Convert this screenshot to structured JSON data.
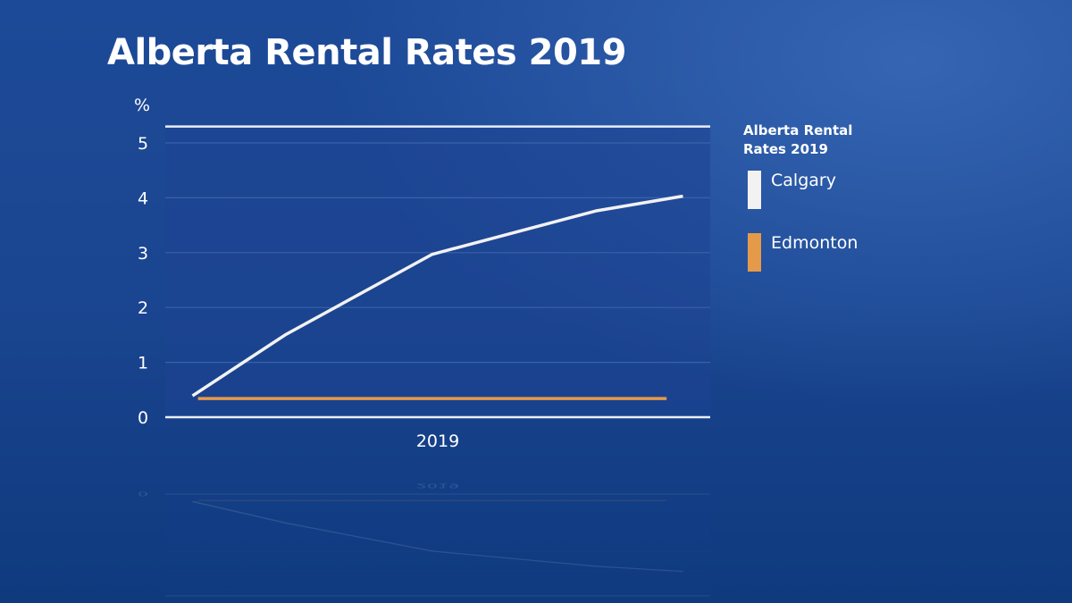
{
  "title": "Alberta Rental Rates 2019",
  "chart_data": {
    "type": "line",
    "title": "Alberta Rental Rates 2019",
    "ylabel": "%",
    "xlabel": "",
    "x_tick_labels": [
      "2019"
    ],
    "y_ticks": [
      0,
      1,
      2,
      3,
      4,
      5
    ],
    "y_tick_labels": [
      "0",
      "1",
      "2",
      "3",
      "4",
      "5"
    ],
    "ylim": [
      0,
      5.3
    ],
    "xlim": [
      2019.0,
      2020.0
    ],
    "grid": true,
    "legend": {
      "title": "Alberta Rental Rates 2019",
      "placement": "right"
    },
    "series": [
      {
        "name": "Calgary",
        "color": "#f2f2f2",
        "x": [
          2019.05,
          2019.22,
          2019.49,
          2019.79,
          2019.95
        ],
        "y": [
          0.39,
          1.5,
          2.97,
          3.76,
          4.03
        ]
      },
      {
        "name": "Edmonton",
        "color": "#e59a4a",
        "x": [
          2019.06,
          2019.92
        ],
        "y": [
          0.34,
          0.34
        ]
      }
    ]
  }
}
